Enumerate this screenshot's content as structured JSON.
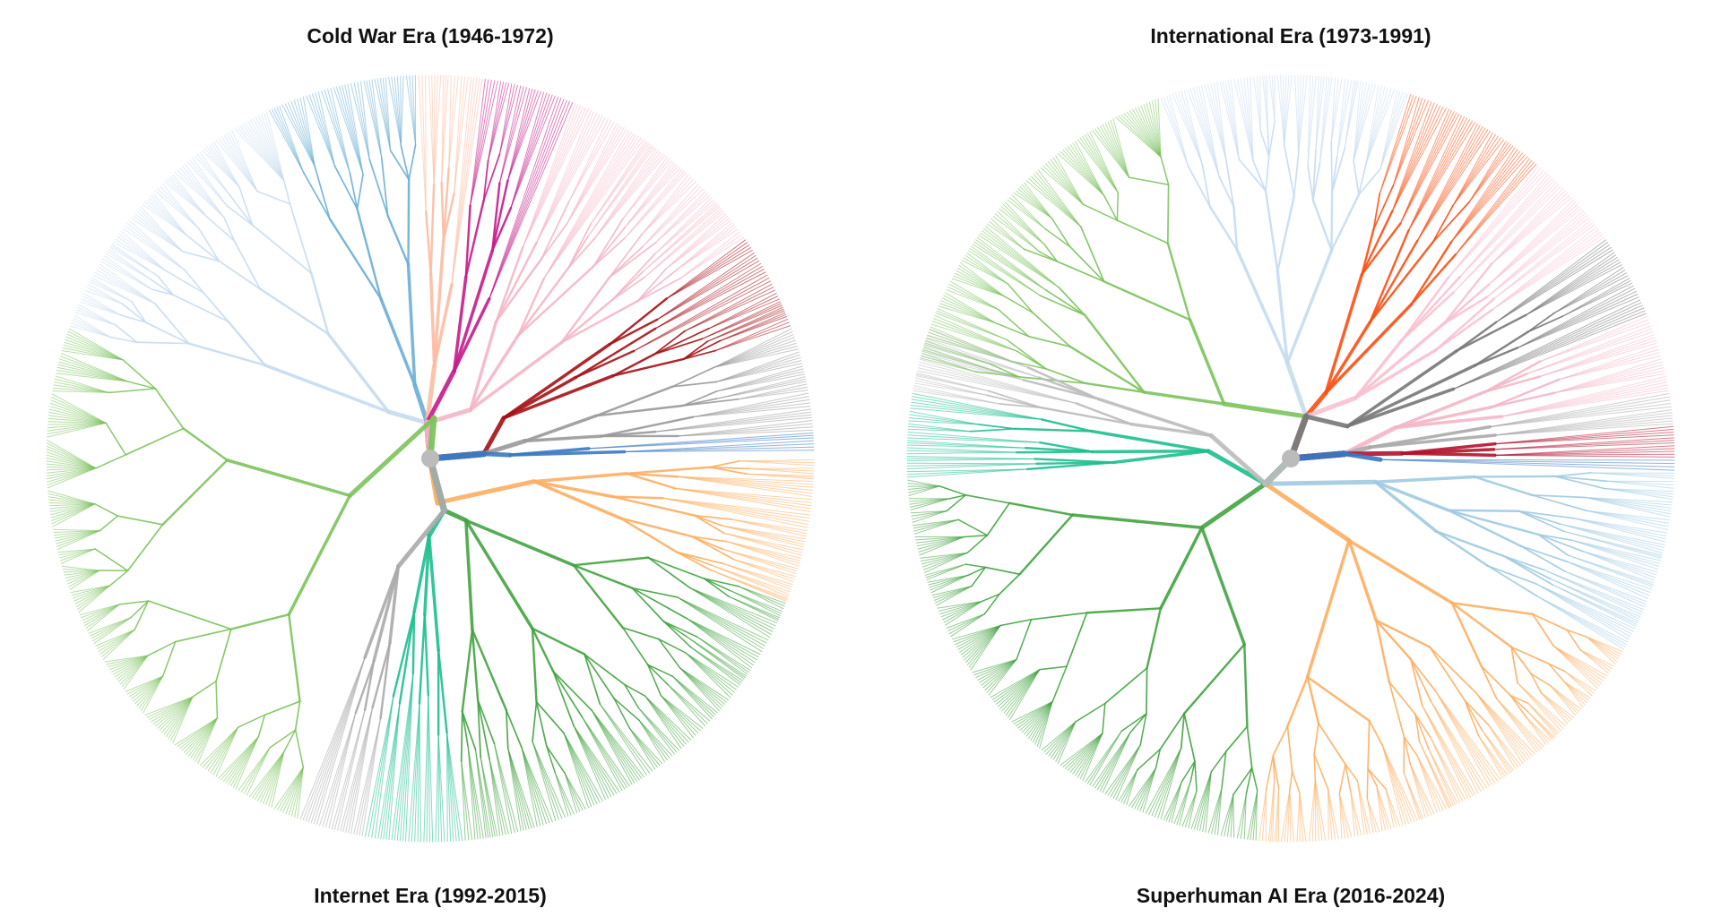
{
  "panels": [
    {
      "title": "Cold War Era (1946-1972)"
    },
    {
      "title": "International Era (1973-1991)"
    },
    {
      "title": "Internet Era (1992-2015)"
    },
    {
      "title": "Superhuman AI Era (2016-2024)"
    }
  ]
}
